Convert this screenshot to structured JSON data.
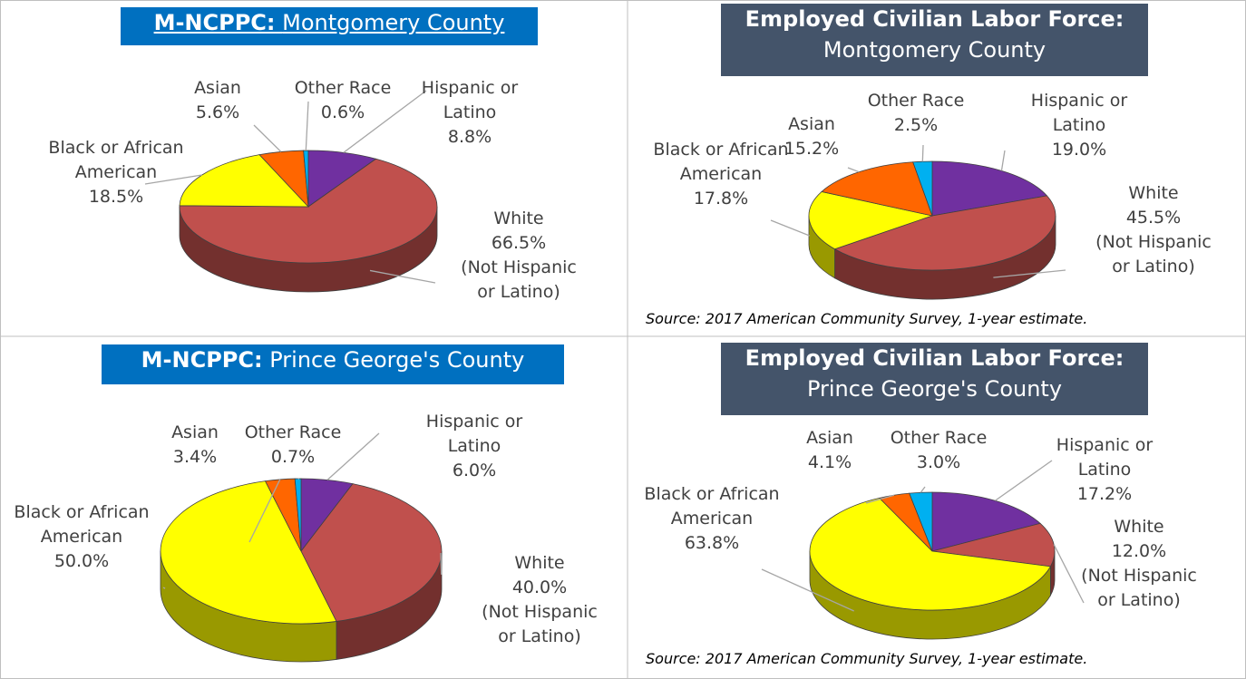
{
  "chart_data": [
    {
      "type": "pie",
      "title_bold": "M-NCPPC:",
      "title": "Montgomery County",
      "categories": [
        "Hispanic or Latino",
        "White",
        "Black or African American",
        "Asian",
        "Other Race"
      ],
      "values": [
        8.8,
        66.5,
        18.5,
        5.6,
        0.6
      ],
      "value_labels": [
        "8.8%",
        "66.5%",
        "18.5%",
        "5.6%",
        "0.6%"
      ],
      "category_notes": [
        null,
        "(Not Hispanic or Latino)",
        null,
        null,
        null
      ],
      "colors": [
        "#7030a0",
        "#c0504d",
        "#ffff00",
        "#ff6600",
        "#00b0f0"
      ]
    },
    {
      "type": "pie",
      "title_bold": "Employed Civilian Labor Force:",
      "title": "Montgomery County",
      "categories": [
        "Hispanic or Latino",
        "White",
        "Black or African American",
        "Asian",
        "Other Race"
      ],
      "values": [
        19.0,
        45.5,
        17.8,
        15.2,
        2.5
      ],
      "value_labels": [
        "19.0%",
        "45.5%",
        "17.8%",
        "15.2%",
        "2.5%"
      ],
      "category_notes": [
        null,
        "(Not Hispanic or Latino)",
        null,
        null,
        null
      ],
      "colors": [
        "#7030a0",
        "#c0504d",
        "#ffff00",
        "#ff6600",
        "#00b0f0"
      ],
      "source": "Source: 2017 American Community Survey, 1-year estimate."
    },
    {
      "type": "pie",
      "title_bold": "M-NCPPC:",
      "title": "Prince George's County",
      "categories": [
        "Hispanic or Latino",
        "White",
        "Black or African American",
        "Asian",
        "Other Race"
      ],
      "values": [
        6.0,
        40.0,
        50.0,
        3.4,
        0.7
      ],
      "value_labels": [
        "6.0%",
        "40.0%",
        "50.0%",
        "3.4%",
        "0.7%"
      ],
      "category_notes": [
        null,
        "(Not Hispanic or Latino)",
        null,
        null,
        null
      ],
      "colors": [
        "#7030a0",
        "#c0504d",
        "#ffff00",
        "#ff6600",
        "#00b0f0"
      ]
    },
    {
      "type": "pie",
      "title_bold": "Employed Civilian Labor Force:",
      "title": "Prince George's County",
      "categories": [
        "Hispanic or Latino",
        "White",
        "Black or African American",
        "Asian",
        "Other Race"
      ],
      "values": [
        17.2,
        12.0,
        63.8,
        4.1,
        3.0
      ],
      "value_labels": [
        "17.2%",
        "12.0%",
        "63.8%",
        "4.1%",
        "3.0%"
      ],
      "category_notes": [
        null,
        "(Not Hispanic or Latino)",
        null,
        null,
        null
      ],
      "colors": [
        "#7030a0",
        "#c0504d",
        "#ffff00",
        "#ff6600",
        "#00b0f0"
      ],
      "source": "Source: 2017 American Community Survey, 1-year estimate."
    }
  ]
}
